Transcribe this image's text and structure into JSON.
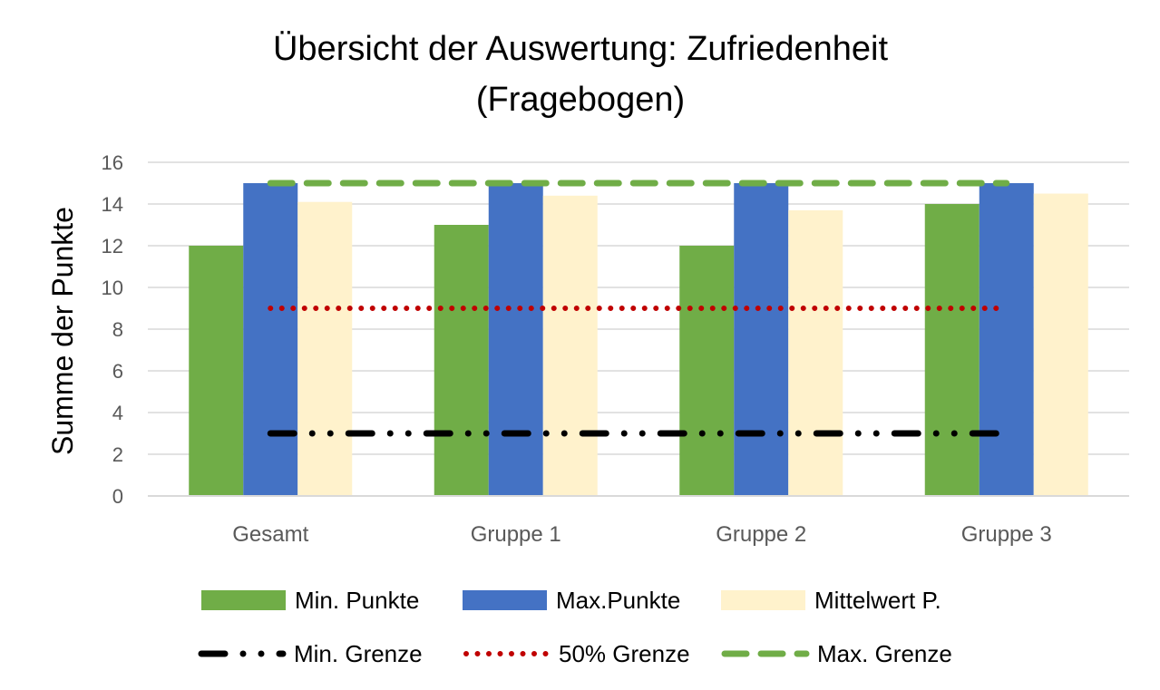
{
  "chart_data": {
    "type": "bar",
    "title_line1": "Übersicht der Auswertung: Zufriedenheit",
    "title_line2": "(Fragebogen)",
    "xlabel": "",
    "ylabel": "Summe der Punkte",
    "ylim": [
      0,
      16
    ],
    "y_ticks": [
      "0",
      "2",
      "4",
      "6",
      "8",
      "10",
      "12",
      "14",
      "16"
    ],
    "grid": true,
    "legend_placement": "bottom",
    "categories": [
      "Gesamt",
      "Gruppe 1",
      "Gruppe 2",
      "Gruppe 3"
    ],
    "series": [
      {
        "name": "Min. Punkte",
        "values": [
          12,
          13,
          12,
          14
        ],
        "color": "#70ad47"
      },
      {
        "name": "Max.Punkte",
        "values": [
          15,
          15,
          15,
          15
        ],
        "color": "#4472c4"
      },
      {
        "name": "Mittelwert P.",
        "values": [
          14.1,
          14.4,
          13.7,
          14.5
        ],
        "color": "#fff2cc"
      }
    ],
    "reference_lines": [
      {
        "name": "Min. Grenze",
        "value": 3,
        "color": "#000000",
        "style": "dash-dot-dot"
      },
      {
        "name": "50% Grenze",
        "value": 9,
        "color": "#c00000",
        "style": "dotted"
      },
      {
        "name": "Max. Grenze",
        "value": 15,
        "color": "#70ad47",
        "style": "dashed"
      }
    ]
  }
}
